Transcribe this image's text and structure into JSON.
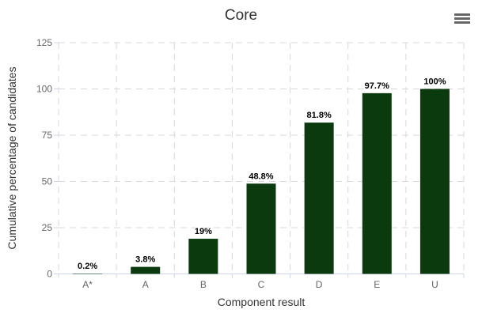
{
  "chart": {
    "title": "Core",
    "context_menu": {
      "icon": "hamburger-icon",
      "tooltip": "Chart context menu"
    }
  },
  "chart_data": {
    "type": "bar",
    "title": "Core",
    "categories": [
      "A*",
      "A",
      "B",
      "C",
      "D",
      "E",
      "U"
    ],
    "values": [
      0.2,
      3.8,
      19,
      48.8,
      81.8,
      97.7,
      100
    ],
    "data_labels": [
      "0.2%",
      "3.8%",
      "19%",
      "48.8%",
      "81.8%",
      "97.7%",
      "100%"
    ],
    "xlabel": "Component result",
    "ylabel": "Cumulative percentage of candidates",
    "ylim": [
      0,
      125
    ],
    "yticks": [
      0,
      25,
      50,
      75,
      100,
      125
    ],
    "ytick_labels": [
      "0",
      "25",
      "50",
      "75",
      "100",
      "125"
    ],
    "grid": "dashed-both-axes",
    "legend_position": "none",
    "colors": {
      "bar": "#0b3a0e",
      "gridline": "#d8d8d8",
      "axis_line": "#ccd6eb",
      "tick_label": "#666666",
      "title_text": "#333333",
      "data_label": "#000000",
      "background": "#ffffff"
    }
  }
}
